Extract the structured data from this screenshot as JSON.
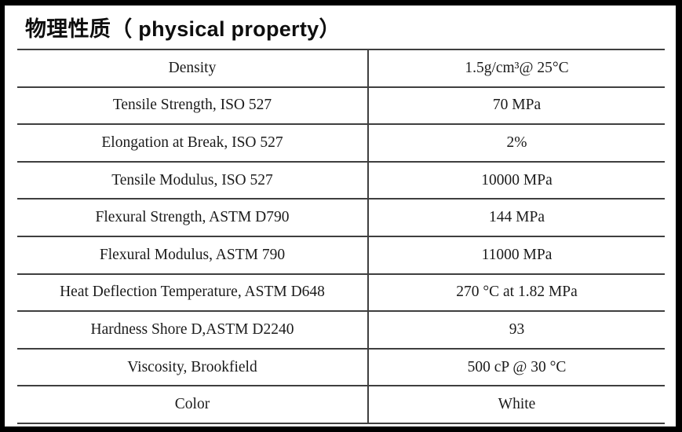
{
  "title": "物理性质（ physical property）",
  "table": {
    "rows": [
      {
        "property": "Density",
        "value": "1.5g/cm³@ 25°C"
      },
      {
        "property": "Tensile Strength, ISO 527",
        "value": "70 MPa"
      },
      {
        "property": "Elongation at Break, ISO 527",
        "value": "2%"
      },
      {
        "property": "Tensile Modulus, ISO 527",
        "value": "10000 MPa"
      },
      {
        "property": "Flexural Strength, ASTM D790",
        "value": "144 MPa"
      },
      {
        "property": "Flexural Modulus, ASTM 790",
        "value": "11000 MPa"
      },
      {
        "property": "Heat Deflection Temperature, ASTM D648",
        "value": "270 °C at 1.82 MPa"
      },
      {
        "property": "Hardness Shore D,ASTM D2240",
        "value": "93"
      },
      {
        "property": "Viscosity, Brookfield",
        "value": "500 cP @ 30 °C"
      },
      {
        "property": "Color",
        "value": "White"
      }
    ]
  },
  "colors": {
    "frame": "#000000",
    "rule": "#3f3f3f",
    "text": "#1b1b1b",
    "background": "#ffffff"
  }
}
